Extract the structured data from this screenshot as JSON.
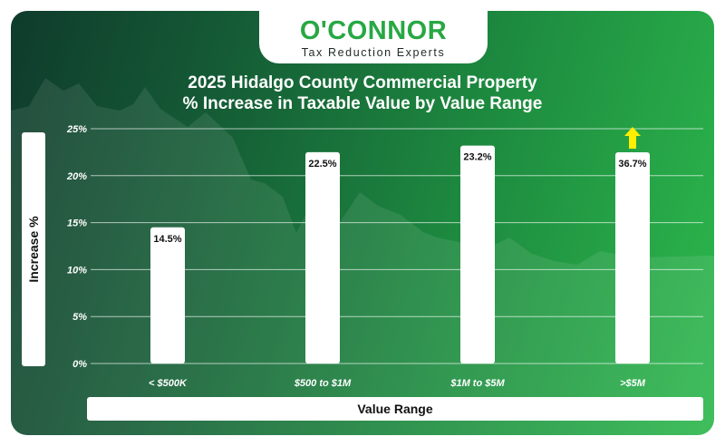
{
  "logo": {
    "name": "O'CONNOR",
    "tagline": "Tax Reduction Experts"
  },
  "colors": {
    "brand_green": "#27a843",
    "arrow": "#ffee00",
    "bar": "#ffffff"
  },
  "chart_data": {
    "type": "bar",
    "title_line1": "2025 Hidalgo County Commercial Property",
    "title_line2": "% Increase in Taxable Value by Value Range",
    "xlabel": "Value Range",
    "ylabel": "Increase %",
    "categories": [
      "< $500K",
      "$500 to $1M",
      "$1M to $5M",
      ">$5M"
    ],
    "values": [
      14.5,
      22.5,
      23.2,
      36.7
    ],
    "value_labels": [
      "14.5%",
      "22.5%",
      "23.2%",
      "36.7%"
    ],
    "yticks": [
      "0%",
      "5%",
      "10%",
      "15%",
      "20%",
      "25%"
    ],
    "ylim": [
      0,
      25
    ],
    "grid": true,
    "overflow_marker": "up-arrow on >$5M bar (value exceeds axis)"
  }
}
